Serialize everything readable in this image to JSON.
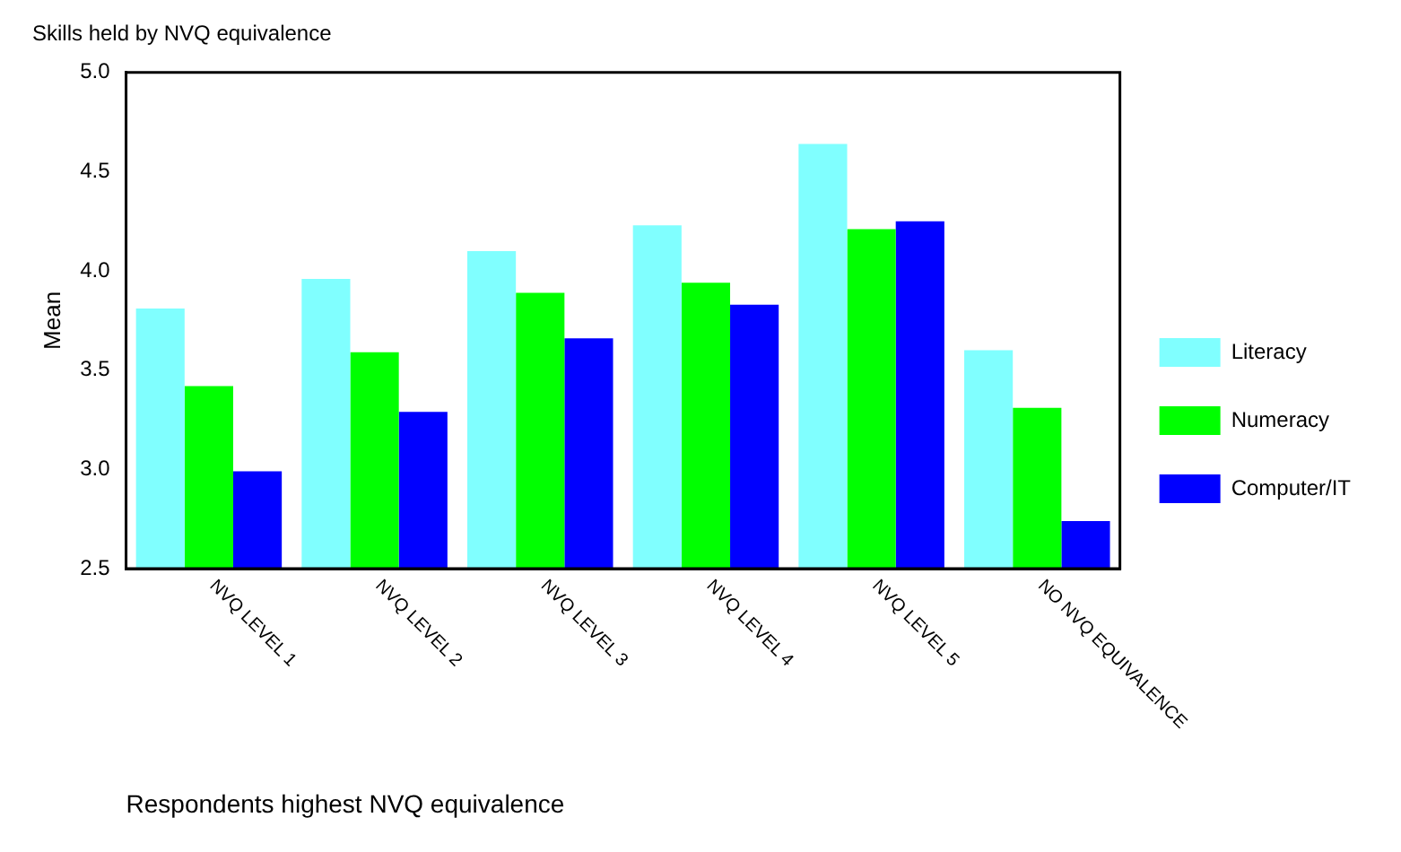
{
  "chart_data": {
    "type": "bar",
    "title": "Skills held by NVQ equivalence",
    "xlabel": "Respondents highest NVQ equivalence",
    "ylabel": "Mean",
    "categories": [
      "NVQ LEVEL 1",
      "NVQ LEVEL 2",
      "NVQ LEVEL 3",
      "NVQ LEVEL 4",
      "NVQ LEVEL 5",
      "NO NVQ EQUIVALENCE"
    ],
    "series": [
      {
        "name": "Literacy",
        "color": "#80ffff",
        "values": [
          3.81,
          3.96,
          4.1,
          4.23,
          4.64,
          3.6
        ]
      },
      {
        "name": "Numeracy",
        "color": "#00ff00",
        "values": [
          3.42,
          3.59,
          3.89,
          3.94,
          4.21,
          3.31
        ]
      },
      {
        "name": "Computer/IT",
        "color": "#0000ff",
        "values": [
          2.99,
          3.29,
          3.66,
          3.83,
          4.25,
          2.74
        ]
      }
    ],
    "ylim": [
      2.5,
      5.0
    ],
    "yticks": [
      {
        "value": 2.5,
        "label": "2.5"
      },
      {
        "value": 3,
        "label": "3.0"
      },
      {
        "value": 3.5,
        "label": "3.5"
      },
      {
        "value": 4,
        "label": "4.0"
      },
      {
        "value": 4.5,
        "label": "4.5"
      },
      {
        "value": 5,
        "label": "5.0"
      }
    ],
    "grid": false,
    "legend": "right"
  }
}
